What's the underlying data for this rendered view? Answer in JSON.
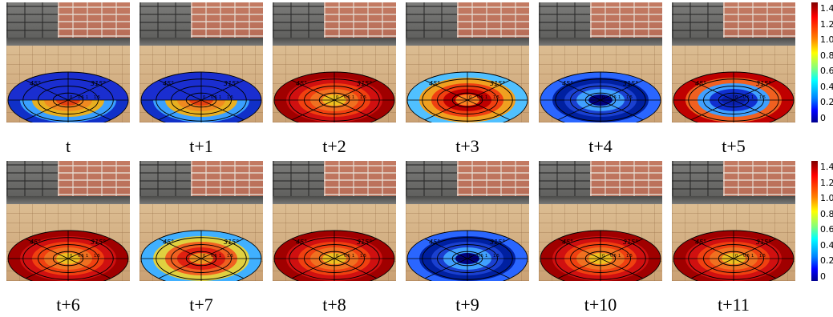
{
  "panels": [
    {
      "caption": "t",
      "map": "blue_top"
    },
    {
      "caption": "t+1",
      "map": "blue_top"
    },
    {
      "caption": "t+2",
      "map": "red"
    },
    {
      "caption": "t+3",
      "map": "mixed"
    },
    {
      "caption": "t+4",
      "map": "blue"
    },
    {
      "caption": "t+5",
      "map": "red_center_blue_edge"
    },
    {
      "caption": "t+6",
      "map": "red"
    },
    {
      "caption": "t+7",
      "map": "mixed_warm"
    },
    {
      "caption": "t+8",
      "map": "red"
    },
    {
      "caption": "t+9",
      "map": "blue"
    },
    {
      "caption": "t+10",
      "map": "red"
    },
    {
      "caption": "t+11",
      "map": "red"
    }
  ],
  "angle_labels": {
    "a45": "45°",
    "a315": "315°",
    "a135": "135°",
    "a225": "225°"
  },
  "radial_labels": [
    "0",
    "0.5",
    "1",
    "1.5"
  ],
  "colorbar": {
    "ticks": [
      "1.4",
      "1.2",
      "1.0",
      "0.8",
      "0.6",
      "0.4",
      "0.2",
      "0"
    ],
    "colormap": "jet",
    "max": 1.5
  }
}
